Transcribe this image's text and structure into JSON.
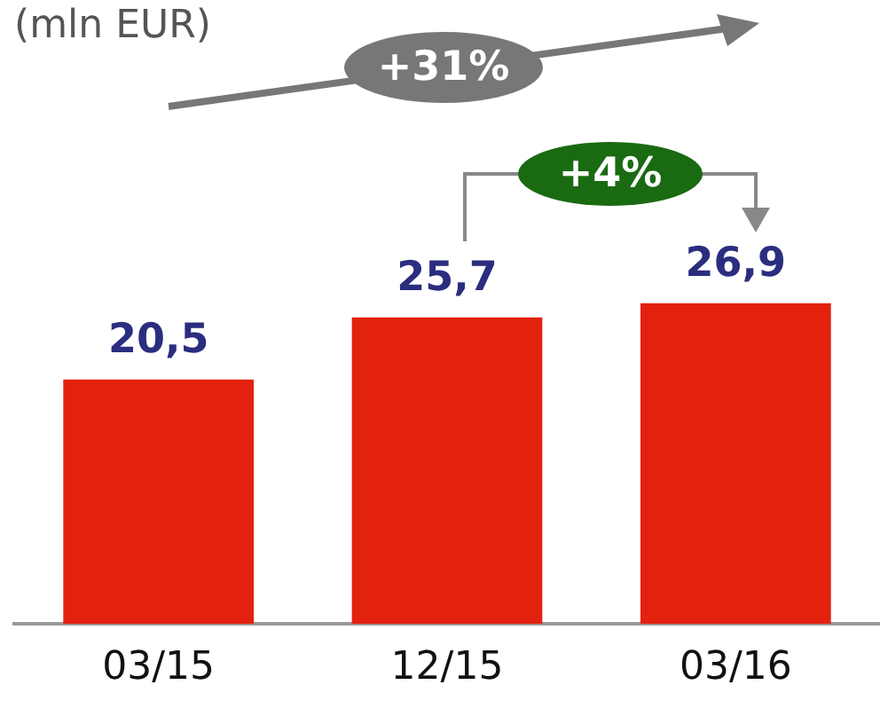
{
  "chart_data": {
    "type": "bar",
    "title": "(mln EUR)",
    "categories": [
      "03/15",
      "12/15",
      "03/16"
    ],
    "values": [
      20.5,
      25.7,
      26.9
    ],
    "value_labels": [
      "20,5",
      "25,7",
      "26,9"
    ],
    "color": "#e2210e",
    "annotations": [
      "+31%",
      "+4%"
    ],
    "grid": false,
    "legend": false
  }
}
